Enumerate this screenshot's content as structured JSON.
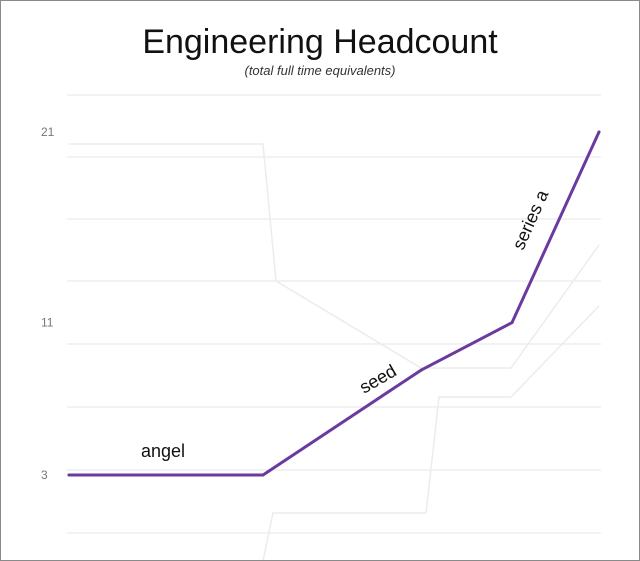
{
  "chart_data": {
    "type": "line",
    "title": "Engineering Headcount",
    "subtitle": "(total full time equivalents)",
    "xlabel": "",
    "ylabel": "",
    "yticks": [
      3,
      11,
      21
    ],
    "ylim": [
      0,
      22
    ],
    "grid": true,
    "line_color": "#6a3a9e",
    "series": [
      {
        "x": [
          0,
          1,
          2,
          2.7,
          3.3
        ],
        "values": [
          3,
          3,
          8.5,
          11,
          21
        ]
      }
    ],
    "annotations": [
      {
        "text": "angel"
      },
      {
        "text": "seed"
      },
      {
        "text": "series a"
      }
    ]
  }
}
